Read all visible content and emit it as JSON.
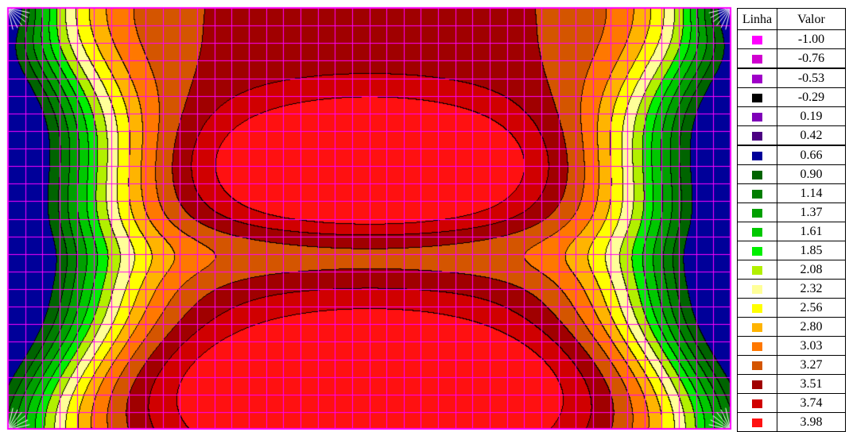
{
  "legend": {
    "header_line": "Linha",
    "header_value": "Valor",
    "items": [
      {
        "value": "-1.00",
        "color": "#ff00ff"
      },
      {
        "value": "-0.76",
        "color": "#d000d0"
      },
      {
        "value": "-0.53",
        "color": "#9f00c8"
      },
      {
        "value": "-0.29",
        "color": "#000000"
      },
      {
        "value": "0.19",
        "color": "#7e00b8"
      },
      {
        "value": "0.42",
        "color": "#4b0082"
      },
      {
        "value": "0.66",
        "color": "#000099"
      },
      {
        "value": "0.90",
        "color": "#006400"
      },
      {
        "value": "1.14",
        "color": "#007e00"
      },
      {
        "value": "1.37",
        "color": "#00a000"
      },
      {
        "value": "1.61",
        "color": "#00c800"
      },
      {
        "value": "1.85",
        "color": "#00f000"
      },
      {
        "value": "2.08",
        "color": "#b2f000"
      },
      {
        "value": "2.32",
        "color": "#ffff99"
      },
      {
        "value": "2.56",
        "color": "#ffff00"
      },
      {
        "value": "2.80",
        "color": "#ffb400"
      },
      {
        "value": "3.03",
        "color": "#ff7800"
      },
      {
        "value": "3.27",
        "color": "#d45500"
      },
      {
        "value": "3.51",
        "color": "#a00000"
      },
      {
        "value": "3.74",
        "color": "#d00000"
      },
      {
        "value": "3.98",
        "color": "#ff1111"
      }
    ]
  },
  "chart_data": {
    "type": "heatmap",
    "grid_color": "#ff00ff",
    "grid": true,
    "legend_position": "right",
    "contour_levels": [
      -1.0,
      -0.76,
      -0.53,
      -0.29,
      0.19,
      0.42,
      0.66,
      0.9,
      1.14,
      1.37,
      1.61,
      1.85,
      2.08,
      2.32,
      2.56,
      2.8,
      3.03,
      3.27,
      3.51,
      3.74,
      3.98
    ]
  }
}
